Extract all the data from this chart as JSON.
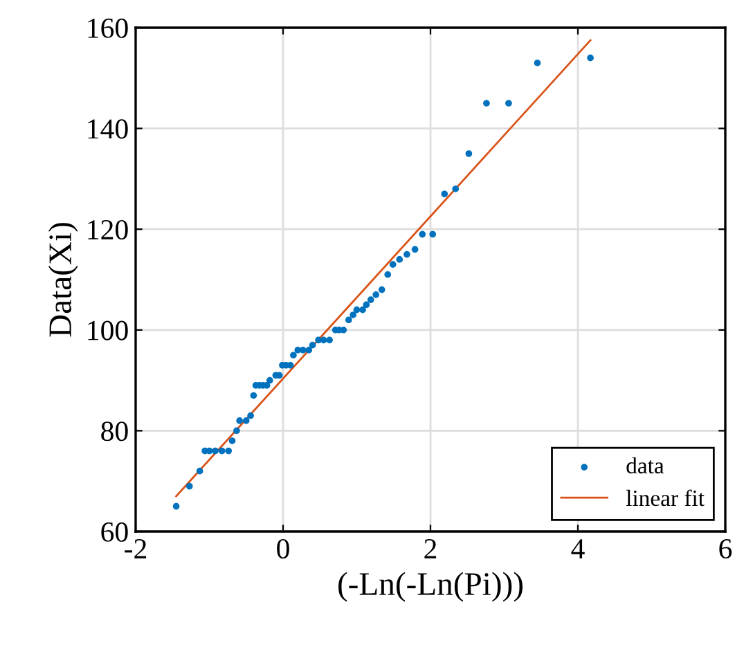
{
  "chart_data": {
    "type": "scatter",
    "xlabel": "(-Ln(-Ln(Pi)))",
    "ylabel": "Data(Xi)",
    "xlim": [
      -2,
      6
    ],
    "xticks": [
      -2,
      0,
      2,
      4,
      6
    ],
    "ylim": [
      60,
      160
    ],
    "yticks": [
      60,
      80,
      100,
      120,
      140,
      160
    ],
    "grid": true,
    "legend": "bottom right",
    "series": [
      {
        "name": "data",
        "marker": "circle",
        "color": "#0072bd",
        "x": [
          -1.45,
          -1.27,
          -1.13,
          -1.06,
          -1.0,
          -0.92,
          -0.83,
          -0.74,
          -0.69,
          -0.63,
          -0.59,
          -0.5,
          -0.44,
          -0.4,
          -0.37,
          -0.32,
          -0.27,
          -0.22,
          -0.18,
          -0.1,
          -0.05,
          -0.01,
          0.04,
          0.1,
          0.14,
          0.2,
          0.27,
          0.35,
          0.4,
          0.48,
          0.55,
          0.63,
          0.71,
          0.76,
          0.82,
          0.89,
          0.95,
          1.0,
          1.08,
          1.13,
          1.19,
          1.26,
          1.34,
          1.42,
          1.49,
          1.58,
          1.68,
          1.79,
          1.89,
          2.03,
          2.19,
          2.34,
          2.52,
          2.76,
          3.06,
          3.45,
          4.17
        ],
        "values": [
          65,
          69,
          72,
          76,
          76,
          76,
          76,
          76,
          78,
          80,
          82,
          82,
          83,
          87,
          89,
          89,
          89,
          89,
          90,
          91,
          91,
          93,
          93,
          93,
          95,
          96,
          96,
          96,
          97,
          98,
          98,
          98,
          100,
          100,
          100,
          102,
          103,
          104,
          104,
          105,
          106,
          107,
          108,
          111,
          113,
          114,
          115,
          116,
          119,
          119,
          127,
          128,
          135,
          145,
          145,
          153,
          154
        ]
      },
      {
        "name": "linear fit",
        "type": "line",
        "color": "#d95319",
        "x": [
          -1.45,
          4.17
        ],
        "values": [
          67,
          157.5
        ]
      }
    ]
  }
}
